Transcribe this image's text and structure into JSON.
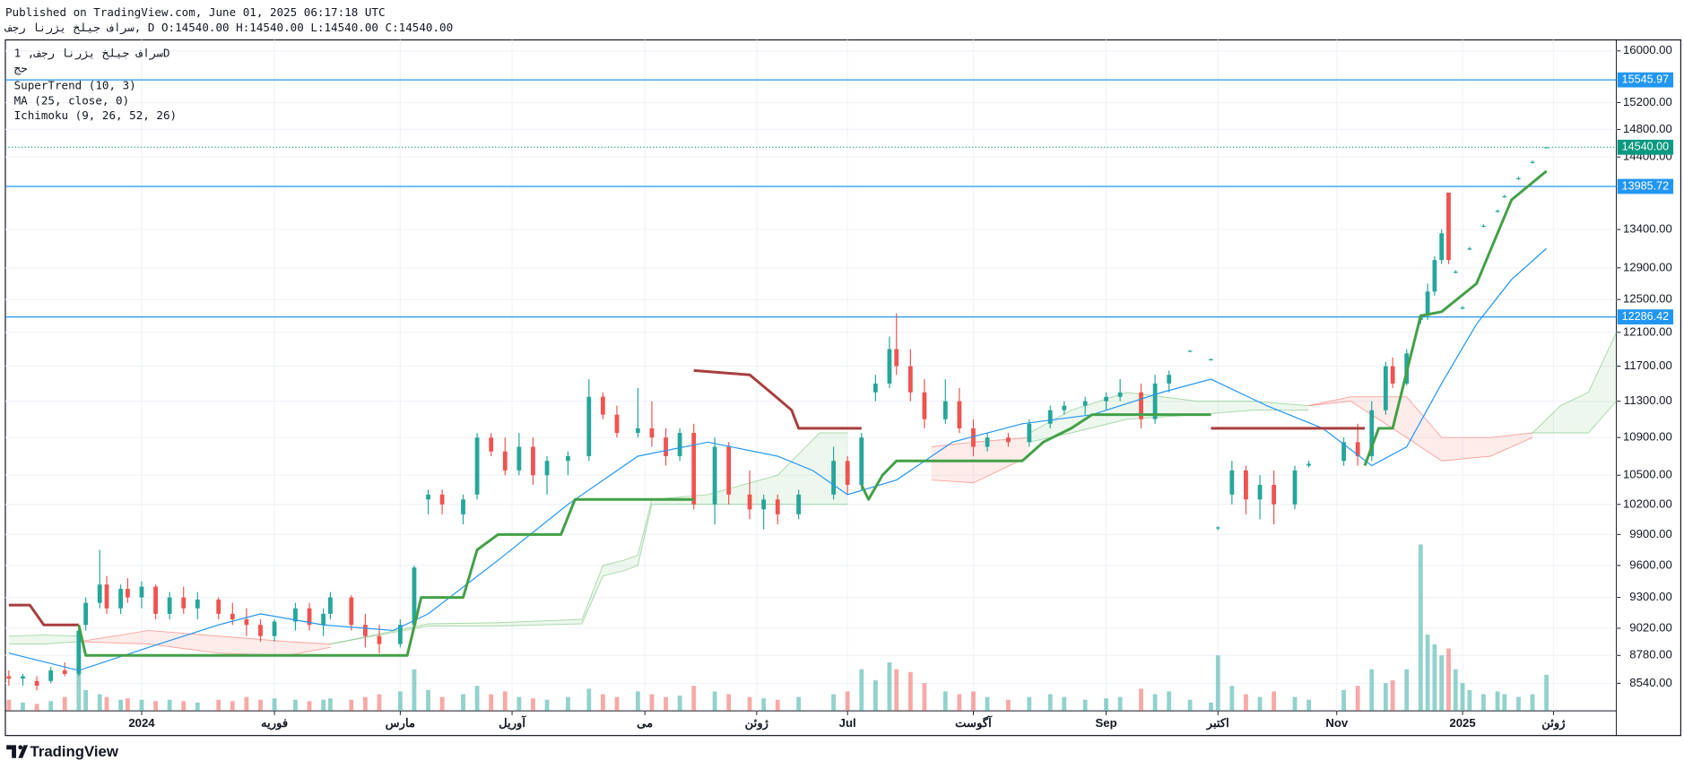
{
  "header": {
    "published": "Published on TradingView.com, June 01, 2025 06:17:18 UTC",
    "ohlc": "سراف جیلخ یژرنا رجف, D O:14540.00 H:14540.00 L:14540.00 C:14540.00",
    "symbol": "سراف جیلخ یژرنا رجف, 1D",
    "exchange": "حج",
    "footer": "TradingView"
  },
  "chart_data": {
    "type": "candlestick",
    "log_scale": true,
    "grid": true,
    "xlim": [
      -0.5,
      230
    ],
    "ylim": [
      8310,
      16175
    ],
    "xticks": [
      {
        "value": 19,
        "label": "2024"
      },
      {
        "value": 38,
        "label": "فوریه"
      },
      {
        "value": 56,
        "label": "مارس"
      },
      {
        "value": 72,
        "label": "آوریل"
      },
      {
        "value": 91,
        "label": "می"
      },
      {
        "value": 107,
        "label": "ژوئن"
      },
      {
        "value": 120,
        "label": "Jul"
      },
      {
        "value": 138,
        "label": "آگوست"
      },
      {
        "value": 157,
        "label": "Sep"
      },
      {
        "value": 173,
        "label": "اکتبر"
      },
      {
        "value": 190,
        "label": "Nov"
      },
      {
        "value": 208,
        "label": "2025"
      },
      {
        "value": 221,
        "label": "ژوئن"
      }
    ],
    "yticks": [
      {
        "value": 16000,
        "label": "16000.00"
      },
      {
        "value": 15200,
        "label": "15200.00"
      },
      {
        "value": 14800,
        "label": "14800.00"
      },
      {
        "value": 14400,
        "label": "14400.00"
      },
      {
        "value": 13400,
        "label": "13400.00"
      },
      {
        "value": 12900,
        "label": "12900.00"
      },
      {
        "value": 12500,
        "label": "12500.00"
      },
      {
        "value": 12100,
        "label": "12100.00"
      },
      {
        "value": 11700,
        "label": "11700.00"
      },
      {
        "value": 11300,
        "label": "11300.00"
      },
      {
        "value": 10900,
        "label": "10900.00"
      },
      {
        "value": 10500,
        "label": "10500.00"
      },
      {
        "value": 10200,
        "label": "10200.00"
      },
      {
        "value": 9900,
        "label": "9900.00"
      },
      {
        "value": 9600,
        "label": "9600.00"
      },
      {
        "value": 9300,
        "label": "9300.00"
      },
      {
        "value": 9020,
        "label": "9020.00"
      },
      {
        "value": 8780,
        "label": "8780.00"
      },
      {
        "value": 8540,
        "label": "8540.00"
      }
    ],
    "price_lines": [
      {
        "value": 15545.97,
        "color": "#2196f3"
      },
      {
        "value": 13985.72,
        "color": "#2196f3"
      },
      {
        "value": 12286.42,
        "color": "#2196f3"
      }
    ],
    "last_price": {
      "value": 14540,
      "label": "14540.00",
      "color": "#089981"
    },
    "candles": {
      "up_color": "#26a69a",
      "down_color": "#ef5350",
      "x": [
        0,
        2,
        4,
        6,
        8,
        10,
        11,
        13,
        14,
        16,
        17,
        19,
        21,
        23,
        25,
        27,
        30,
        32,
        34,
        36,
        38,
        41,
        43,
        45,
        46,
        49,
        51,
        53,
        56,
        58,
        60,
        62,
        65,
        67,
        69,
        71,
        73,
        75,
        77,
        80,
        83,
        85,
        87,
        90,
        92,
        94,
        96,
        98,
        101,
        103,
        106,
        108,
        110,
        113,
        118,
        120,
        122,
        124,
        126,
        127,
        129,
        131,
        134,
        136,
        138,
        140,
        143,
        146,
        149,
        151,
        154,
        157,
        159,
        162,
        164,
        166,
        169,
        172,
        173,
        175,
        177,
        179,
        181,
        184,
        186,
        191,
        193,
        195,
        197,
        198,
        200,
        202,
        203,
        204,
        205,
        206,
        207,
        208,
        209,
        211,
        213,
        214,
        216,
        218,
        220
      ],
      "open": [
        8600,
        8580,
        8560,
        8560,
        8650,
        8620,
        9050,
        9250,
        9420,
        9200,
        9380,
        9300,
        9400,
        9150,
        9300,
        9200,
        9280,
        9150,
        9100,
        9050,
        8950,
        9080,
        9200,
        9050,
        9150,
        9300,
        9050,
        8950,
        8880,
        9050,
        10250,
        10300,
        10100,
        10300,
        10900,
        10750,
        10550,
        10800,
        10500,
        10650,
        10700,
        11350,
        11150,
        10950,
        11000,
        10900,
        10700,
        10950,
        10200,
        10800,
        10300,
        10150,
        10250,
        10100,
        10300,
        10650,
        10400,
        11400,
        11500,
        11900,
        11700,
        11400,
        11100,
        11300,
        11000,
        10800,
        10900,
        10850,
        11050,
        11200,
        11250,
        11300,
        11350,
        11400,
        11100,
        11500,
        11880,
        11780,
        9960,
        10300,
        10550,
        10250,
        10400,
        10200,
        10600,
        10650,
        10850,
        10700,
        11200,
        11700,
        11500,
        12250,
        12300,
        12600,
        13000,
        13900,
        12850,
        12400,
        13150,
        13450,
        13650,
        13850,
        14100,
        14330,
        14540
      ],
      "high": [
        8650,
        8620,
        8600,
        8680,
        8720,
        9050,
        9300,
        9750,
        9500,
        9420,
        9480,
        9450,
        9420,
        9350,
        9400,
        9350,
        9300,
        9250,
        9200,
        9100,
        9100,
        9250,
        9250,
        9200,
        9350,
        9320,
        9150,
        9050,
        9100,
        9600,
        10350,
        10350,
        10300,
        10950,
        10950,
        10900,
        10950,
        10900,
        10700,
        10750,
        11550,
        11400,
        11250,
        11450,
        11300,
        11000,
        11000,
        11050,
        10900,
        10850,
        10550,
        10300,
        10300,
        10350,
        10800,
        10700,
        10950,
        11600,
        12050,
        12330,
        11900,
        11550,
        11550,
        11450,
        11100,
        10950,
        10950,
        11100,
        11250,
        11300,
        11350,
        11400,
        11550,
        11500,
        11600,
        11650,
        11890,
        11790,
        9980,
        10650,
        10600,
        10500,
        10550,
        10600,
        10650,
        10900,
        11050,
        11300,
        11750,
        11800,
        11900,
        12320,
        12700,
        13050,
        13400,
        13900,
        12870,
        12420,
        13170,
        13470,
        13670,
        13870,
        14120,
        14350,
        14540
      ],
      "low": [
        8520,
        8520,
        8480,
        8540,
        8600,
        8600,
        9000,
        9200,
        9150,
        9150,
        9250,
        9200,
        9100,
        9100,
        9150,
        9100,
        9100,
        9050,
        8950,
        8900,
        8900,
        9000,
        9000,
        8950,
        9100,
        9000,
        8850,
        8800,
        8850,
        9000,
        10100,
        10100,
        10000,
        10250,
        10700,
        10500,
        10500,
        10400,
        10300,
        10500,
        10650,
        11100,
        10900,
        10900,
        10800,
        10600,
        10650,
        10150,
        10000,
        10200,
        10050,
        9950,
        10000,
        10050,
        10250,
        10300,
        10350,
        11300,
        11450,
        11600,
        11300,
        11000,
        11050,
        10950,
        10700,
        10750,
        10800,
        10800,
        11000,
        11150,
        11150,
        11200,
        11300,
        11000,
        11050,
        11400,
        11870,
        11770,
        9940,
        10200,
        10100,
        10050,
        10000,
        10150,
        10580,
        10600,
        10600,
        10650,
        11150,
        11450,
        11480,
        12200,
        12250,
        12550,
        12950,
        12950,
        12830,
        12380,
        13130,
        13430,
        13630,
        13830,
        14080,
        14310,
        14540
      ],
      "close": [
        8580,
        8600,
        8520,
        8650,
        8620,
        9000,
        9250,
        9420,
        9200,
        9380,
        9300,
        9400,
        9150,
        9300,
        9200,
        9280,
        9150,
        9100,
        9050,
        8950,
        9080,
        9200,
        9050,
        9150,
        9300,
        9050,
        8950,
        8880,
        9050,
        9580,
        10300,
        10200,
        10250,
        10900,
        10750,
        10550,
        10800,
        10500,
        10650,
        10700,
        11350,
        11150,
        10950,
        11000,
        10900,
        10700,
        10950,
        10200,
        10800,
        10300,
        10150,
        10250,
        10100,
        10300,
        10650,
        10400,
        10900,
        11500,
        11900,
        11700,
        11400,
        11100,
        11300,
        11000,
        10800,
        10900,
        10850,
        11050,
        11200,
        11250,
        11300,
        11350,
        11400,
        11100,
        11500,
        11600,
        11880,
        11780,
        9970,
        10550,
        10250,
        10400,
        10200,
        10550,
        10620,
        10850,
        10700,
        11200,
        11700,
        11500,
        11850,
        12300,
        12600,
        13000,
        13350,
        13000,
        12850,
        12400,
        13150,
        13450,
        13650,
        13850,
        14100,
        14330,
        14540
      ],
      "volume": [
        8,
        6,
        5,
        7,
        10,
        40,
        15,
        12,
        10,
        8,
        9,
        8,
        7,
        8,
        7,
        6,
        8,
        7,
        10,
        8,
        9,
        8,
        7,
        8,
        9,
        8,
        10,
        12,
        14,
        30,
        15,
        10,
        12,
        18,
        12,
        14,
        10,
        9,
        8,
        10,
        16,
        12,
        10,
        14,
        12,
        10,
        11,
        18,
        14,
        12,
        10,
        9,
        8,
        10,
        12,
        14,
        30,
        22,
        35,
        30,
        28,
        20,
        14,
        12,
        14,
        10,
        8,
        10,
        12,
        10,
        8,
        9,
        10,
        16,
        12,
        14,
        8,
        6,
        40,
        18,
        12,
        10,
        14,
        10,
        8,
        15,
        18,
        30,
        20,
        22,
        30,
        120,
        55,
        48,
        40,
        45,
        30,
        20,
        15,
        12,
        14,
        12,
        10,
        12,
        26
      ]
    },
    "indicators": [
      {
        "name": "SuperTrend (10, 3)",
        "segments": [
          {
            "color": "#a83f3f",
            "x": [
              0,
              3,
              5,
              10
            ],
            "values": [
              9230,
              9230,
              9050,
              9050
            ]
          },
          {
            "color": "#43a047",
            "x": [
              10,
              11,
              57,
              59,
              65,
              67,
              70,
              79,
              81,
              98
            ],
            "values": [
              9050,
              8780,
              8780,
              9300,
              9300,
              9750,
              9900,
              9900,
              10250,
              10250
            ]
          },
          {
            "color": "#a83f3f",
            "x": [
              98,
              106,
              109,
              112,
              113,
              122
            ],
            "values": [
              11650,
              11600,
              11400,
              11200,
              11000,
              11000
            ]
          },
          {
            "color": "#43a047",
            "x": [
              122,
              123,
              125,
              127,
              145,
              148,
              152,
              155,
              172
            ],
            "values": [
              10400,
              10250,
              10500,
              10650,
              10650,
              10850,
              11000,
              11150,
              11150
            ]
          },
          {
            "color": "#a83f3f",
            "x": [
              172,
              194
            ],
            "values": [
              11000,
              11000
            ]
          },
          {
            "color": "#43a047",
            "x": [
              194,
              196,
              198,
              202,
              205,
              210,
              215,
              220
            ],
            "values": [
              10600,
              11000,
              11000,
              12300,
              12350,
              12700,
              13800,
              14200
            ]
          }
        ]
      },
      {
        "name": "MA (25, close, 0)",
        "color": "#2196f3",
        "x": [
          0,
          10,
          20,
          30,
          36,
          45,
          55,
          60,
          70,
          80,
          90,
          100,
          110,
          115,
          120,
          127,
          135,
          145,
          155,
          165,
          172,
          180,
          188,
          195,
          200,
          205,
          210,
          215,
          220
        ],
        "values": [
          8800,
          8650,
          8850,
          9050,
          9150,
          9050,
          9000,
          9150,
          9650,
          10200,
          10700,
          10850,
          10700,
          10550,
          10300,
          10450,
          10850,
          11050,
          11150,
          11400,
          11550,
          11250,
          11000,
          10600,
          10800,
          11500,
          12200,
          12750,
          13150
        ]
      },
      {
        "name": "Ichimoku (9, 26, 52, 26)",
        "cloud": [
          {
            "color": "#4caf50",
            "x": [
              0,
              5,
              10
            ],
            "a": [
              8950,
              8960,
              8950
            ],
            "b": [
              8880,
              8880,
              8900
            ]
          },
          {
            "color": "#f44336",
            "x": [
              10,
              20,
              30,
              40,
              46
            ],
            "a": [
              8900,
              8880,
              8800,
              8780,
              8850
            ],
            "b": [
              8900,
              9000,
              8950,
              8900,
              8880
            ]
          },
          {
            "color": "#4caf50",
            "x": [
              46,
              60,
              70,
              82,
              85,
              88,
              90,
              92,
              100,
              110,
              116,
              120
            ],
            "a": [
              8880,
              9060,
              9070,
              9100,
              9600,
              9650,
              9700,
              10250,
              10300,
              10500,
              10950,
              10950
            ],
            "b": [
              8880,
              9040,
              9040,
              9060,
              9500,
              9550,
              9600,
              10200,
              10200,
              10200,
              10200,
              10200
            ]
          },
          {
            "color": "#f44336",
            "x": [
              132,
              138,
              146
            ],
            "a": [
              10450,
              10420,
              10700
            ],
            "b": [
              10800,
              10850,
              10900
            ]
          },
          {
            "color": "#4caf50",
            "x": [
              146,
              152,
              160,
              170,
              178,
              186
            ],
            "a": [
              10950,
              11200,
              11400,
              11300,
              11300,
              11250
            ],
            "b": [
              10850,
              10950,
              11100,
              11150,
              11200,
              11200
            ]
          },
          {
            "color": "#f44336",
            "x": [
              186,
              192,
              200,
              205,
              212,
              218
            ],
            "a": [
              11250,
              11300,
              10900,
              10650,
              10700,
              10900
            ],
            "b": [
              11250,
              11350,
              11350,
              10900,
              10900,
              10950
            ]
          },
          {
            "color": "#4caf50",
            "x": [
              218,
              222,
              226,
              230
            ],
            "a": [
              10950,
              11250,
              11400,
              12100
            ],
            "b": [
              10950,
              10950,
              10950,
              11300
            ]
          }
        ]
      }
    ]
  }
}
